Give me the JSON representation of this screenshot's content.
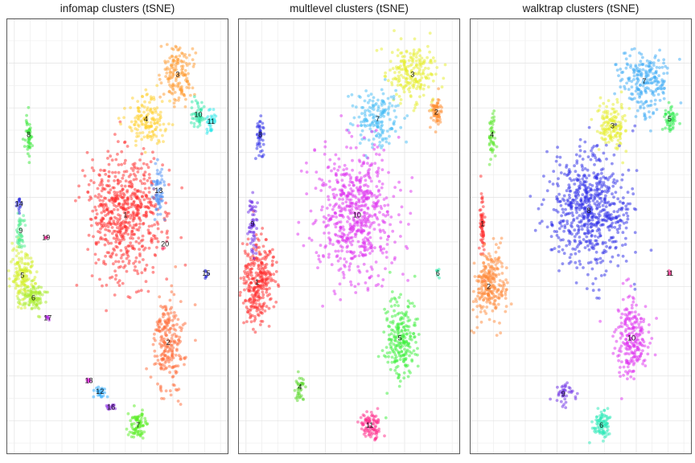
{
  "chart_data": [
    {
      "type": "scatter",
      "title": "infomap clusters (tSNE)",
      "grid": true,
      "clusters": [
        {
          "label": "1",
          "color": "#ff2a2a",
          "cx": -5,
          "cy": 12,
          "sx": 12,
          "sy": 14,
          "n": 620
        },
        {
          "label": "2",
          "color": "#ff6a35",
          "cx": 22,
          "cy": -45,
          "sx": 5,
          "sy": 10,
          "n": 230
        },
        {
          "label": "3",
          "color": "#ff9a2e",
          "cx": 28,
          "cy": 75,
          "sx": 5,
          "sy": 6,
          "n": 150
        },
        {
          "label": "4",
          "color": "#ffd02a",
          "cx": 8,
          "cy": 55,
          "sx": 6,
          "sy": 6,
          "n": 150
        },
        {
          "label": "5",
          "color": "#d4ef2a",
          "cx": -70,
          "cy": -15,
          "sx": 3.5,
          "sy": 6,
          "n": 150
        },
        {
          "label": "6",
          "color": "#a8ec2a",
          "cx": -63,
          "cy": -25,
          "sx": 4,
          "sy": 3,
          "n": 100
        },
        {
          "label": "7",
          "color": "#58ee22",
          "cx": 3,
          "cy": -82,
          "sx": 3,
          "sy": 3,
          "n": 80
        },
        {
          "label": "8",
          "color": "#38e838",
          "cx": -66,
          "cy": 48,
          "sx": 1.2,
          "sy": 5,
          "n": 45
        },
        {
          "label": "9",
          "color": "#52ee90",
          "cx": -71,
          "cy": 5,
          "sx": 1.3,
          "sy": 5,
          "n": 45
        },
        {
          "label": "10",
          "color": "#2ee8a8",
          "cx": 41,
          "cy": 57,
          "sx": 2,
          "sy": 3,
          "n": 50
        },
        {
          "label": "11",
          "color": "#2ae8ea",
          "cx": 49,
          "cy": 54,
          "sx": 1.5,
          "sy": 2.5,
          "n": 35
        },
        {
          "label": "12",
          "color": "#2aaaff",
          "cx": -21,
          "cy": -67,
          "sx": 2,
          "sy": 1.5,
          "n": 25
        },
        {
          "label": "13",
          "color": "#4a8df5",
          "cx": 16,
          "cy": 23,
          "sx": 2,
          "sy": 6,
          "n": 60
        },
        {
          "label": "14",
          "color": "#2222e0",
          "cx": -72,
          "cy": 17,
          "sx": 0.8,
          "sy": 2,
          "n": 14
        },
        {
          "label": "15",
          "color": "#1010cc",
          "cx": 46,
          "cy": -14,
          "sx": 0.6,
          "sy": 1.5,
          "n": 6
        },
        {
          "label": "16",
          "color": "#8a2ae2",
          "cx": -14,
          "cy": -74,
          "sx": 1.5,
          "sy": 1.2,
          "n": 15
        },
        {
          "label": "17",
          "color": "#b82ee8",
          "cx": -54,
          "cy": -34,
          "sx": 0.6,
          "sy": 0.6,
          "n": 8
        },
        {
          "label": "18",
          "color": "#e82ae6",
          "cx": -28,
          "cy": -62,
          "sx": 0.6,
          "sy": 0.6,
          "n": 8
        },
        {
          "label": "19",
          "color": "#e8258f",
          "cx": -55,
          "cy": 2,
          "sx": 0.3,
          "sy": 0.3,
          "n": 5
        },
        {
          "label": "20",
          "color": "#ff2a5a",
          "cx": 20,
          "cy": -1,
          "sx": 2,
          "sy": 2,
          "n": 4
        }
      ]
    },
    {
      "type": "scatter",
      "title": "multlevel clusters (tSNE)",
      "grid": true,
      "clusters": [
        {
          "label": "1",
          "color": "#ff2a2a",
          "cx": -68,
          "cy": -18,
          "sx": 5,
          "sy": 9,
          "n": 300
        },
        {
          "label": "2",
          "color": "#ff8a2a",
          "cx": 45,
          "cy": 58,
          "sx": 2,
          "sy": 4,
          "n": 60
        },
        {
          "label": "3",
          "color": "#e6ee2a",
          "cx": 30,
          "cy": 75,
          "sx": 8,
          "sy": 6,
          "n": 210
        },
        {
          "label": "4",
          "color": "#5ad82a",
          "cx": -41,
          "cy": -65,
          "sx": 2,
          "sy": 3,
          "n": 35
        },
        {
          "label": "5",
          "color": "#3af03a",
          "cx": 22,
          "cy": -43,
          "sx": 5,
          "sy": 9,
          "n": 230
        },
        {
          "label": "6",
          "color": "#2aeaa8",
          "cx": 46,
          "cy": -14,
          "sx": 0.6,
          "sy": 1.5,
          "n": 6
        },
        {
          "label": "7",
          "color": "#44bbf5",
          "cx": 8,
          "cy": 55,
          "sx": 7,
          "sy": 6,
          "n": 170
        },
        {
          "label": "8",
          "color": "#2a2ae8",
          "cx": -66,
          "cy": 48,
          "sx": 1.2,
          "sy": 5,
          "n": 45
        },
        {
          "label": "9",
          "color": "#6a2ae6",
          "cx": -71,
          "cy": 8,
          "sx": 1.3,
          "sy": 7,
          "n": 60
        },
        {
          "label": "10",
          "color": "#dd2ef0",
          "cx": -5,
          "cy": 12,
          "sx": 12,
          "sy": 14,
          "n": 620
        },
        {
          "label": "11",
          "color": "#ff2a8a",
          "cx": 3,
          "cy": -82,
          "sx": 3,
          "sy": 3,
          "n": 90
        }
      ]
    },
    {
      "type": "scatter",
      "title": "walktrap clusters (tSNE)",
      "grid": true,
      "clusters": [
        {
          "label": "1",
          "color": "#ff2a2a",
          "cx": -72,
          "cy": 8,
          "sx": 0.8,
          "sy": 9,
          "n": 60
        },
        {
          "label": "2",
          "color": "#ff8a3a",
          "cx": -68,
          "cy": -20,
          "sx": 5,
          "sy": 8,
          "n": 260
        },
        {
          "label": "3",
          "color": "#e6ee2a",
          "cx": 10,
          "cy": 52,
          "sx": 5,
          "sy": 5,
          "n": 150
        },
        {
          "label": "4",
          "color": "#5ae82a",
          "cx": -66,
          "cy": 48,
          "sx": 1.2,
          "sy": 5,
          "n": 45
        },
        {
          "label": "5",
          "color": "#2aec4a",
          "cx": 46,
          "cy": 55,
          "sx": 2,
          "sy": 3,
          "n": 50
        },
        {
          "label": "6",
          "color": "#2aeab8",
          "cx": 3,
          "cy": -82,
          "sx": 3,
          "sy": 3,
          "n": 90
        },
        {
          "label": "7",
          "color": "#3aaaf5",
          "cx": 30,
          "cy": 72,
          "sx": 7,
          "sy": 7,
          "n": 220
        },
        {
          "label": "8",
          "color": "#2a2ae8",
          "cx": -5,
          "cy": 14,
          "sx": 13,
          "sy": 14,
          "n": 640
        },
        {
          "label": "9",
          "color": "#6a2ae6",
          "cx": -21,
          "cy": -68,
          "sx": 3,
          "sy": 3,
          "n": 40
        },
        {
          "label": "10",
          "color": "#dd2ef0",
          "cx": 22,
          "cy": -43,
          "sx": 5,
          "sy": 9,
          "n": 230
        },
        {
          "label": "11",
          "color": "#ff2a8a",
          "cx": 46,
          "cy": -14,
          "sx": 0.5,
          "sy": 0.5,
          "n": 5
        }
      ]
    }
  ]
}
